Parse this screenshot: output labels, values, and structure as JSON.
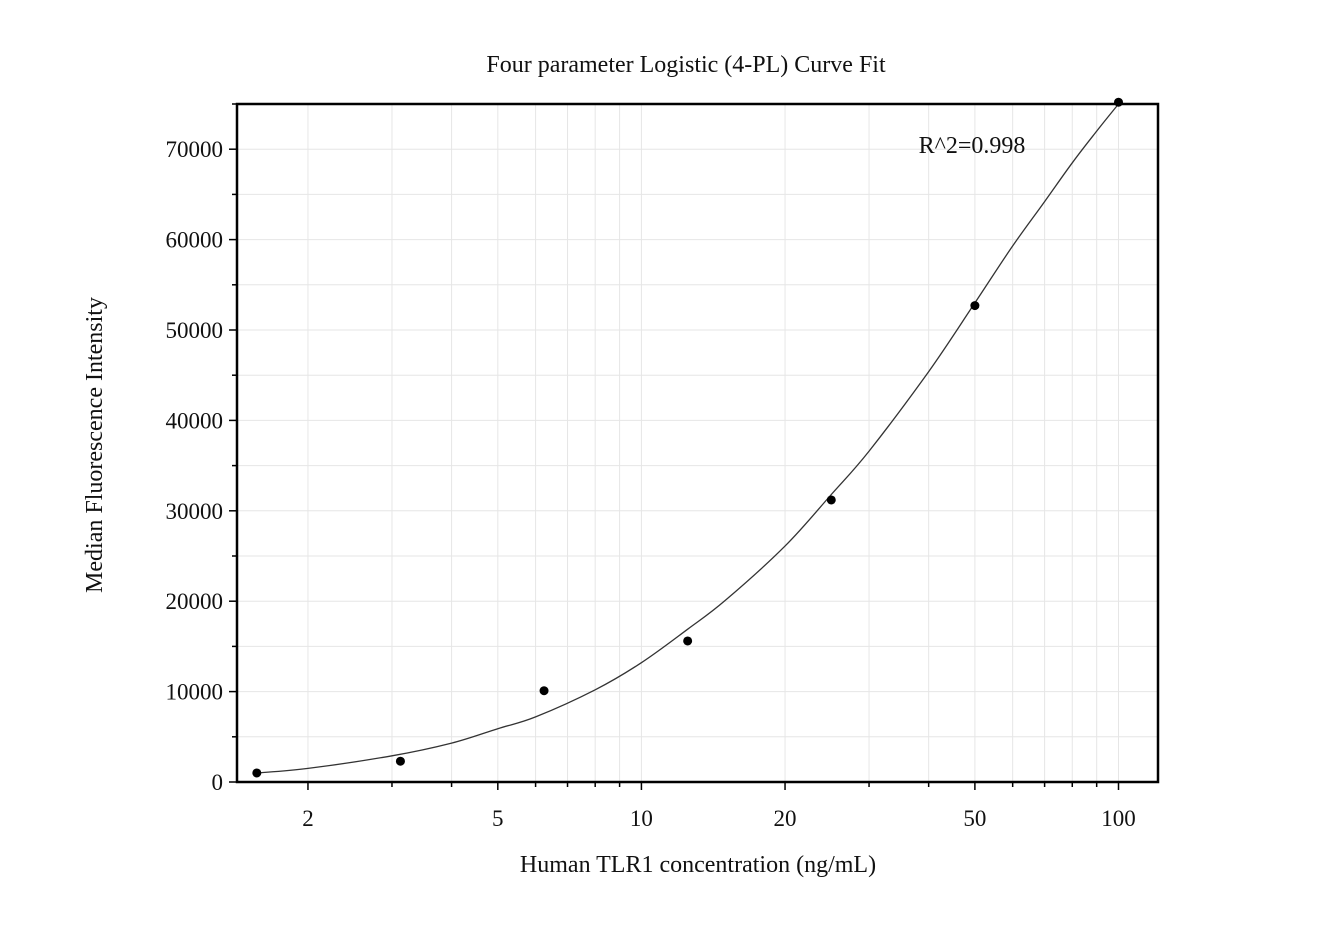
{
  "chart_data": {
    "type": "scatter",
    "title": "Four parameter Logistic (4-PL) Curve Fit",
    "xlabel": "Human TLR1 concentration (ng/mL)",
    "ylabel": "Median Fluorescence Intensity",
    "x_scale": "log",
    "xlim": [
      1.42,
      121
    ],
    "ylim": [
      0,
      75000
    ],
    "x_ticks": [
      2,
      5,
      10,
      20,
      50,
      100
    ],
    "x_tick_labels": [
      "2",
      "5",
      "10",
      "20",
      "50",
      "100"
    ],
    "y_ticks": [
      0,
      10000,
      20000,
      30000,
      40000,
      50000,
      60000,
      70000
    ],
    "y_tick_labels": [
      "0",
      "10000",
      "20000",
      "30000",
      "40000",
      "50000",
      "60000",
      "70000"
    ],
    "grid": true,
    "annotation": "R^2=0.998",
    "series": [
      {
        "kind": "points",
        "x": [
          1.5625,
          3.125,
          6.25,
          12.5,
          25,
          50,
          100
        ],
        "y": [
          1000,
          2300,
          10100,
          15600,
          31200,
          52700,
          75200
        ]
      },
      {
        "kind": "fit-curve",
        "x": [
          1.5625,
          2,
          3,
          4,
          5,
          6,
          8,
          10,
          12.5,
          15,
          20,
          25,
          30,
          40,
          50,
          60,
          70,
          80,
          90,
          100
        ],
        "y": [
          1000,
          1500,
          2900,
          4300,
          5900,
          7200,
          10200,
          13200,
          16900,
          20100,
          26100,
          31800,
          36600,
          45400,
          53000,
          59300,
          64200,
          68500,
          72000,
          75000
        ]
      }
    ],
    "colors": {
      "points": "#000000",
      "curve": "#333333",
      "grid": "#e6e6e6",
      "frame": "#000000"
    }
  }
}
